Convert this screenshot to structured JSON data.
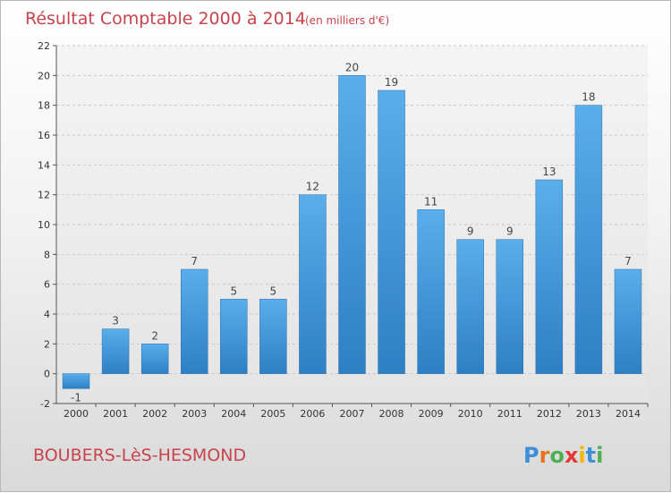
{
  "chart_data": {
    "type": "bar",
    "title": "Résultat Comptable 2000 à 2014",
    "subtitle": "(en milliers d'€)",
    "categories": [
      "2000",
      "2001",
      "2002",
      "2003",
      "2004",
      "2005",
      "2006",
      "2007",
      "2008",
      "2009",
      "2010",
      "2011",
      "2012",
      "2013",
      "2014"
    ],
    "values": [
      -1,
      3,
      2,
      7,
      5,
      5,
      12,
      20,
      19,
      11,
      9,
      9,
      13,
      18,
      7
    ],
    "ylim": [
      -2,
      22
    ],
    "yticks": [
      -2,
      0,
      2,
      4,
      6,
      8,
      10,
      12,
      14,
      16,
      18,
      20,
      22
    ],
    "grid": true,
    "bar_color": "#4a9ee0"
  },
  "footer": {
    "commune": "BOUBERS-LèS-HESMOND",
    "logo_letters": [
      "P",
      "r",
      "o",
      "x",
      "i",
      "t",
      "i"
    ],
    "logo_colors": [
      "#3d8fd6",
      "#e8721c",
      "#4caf50",
      "#e53935",
      "#f2b705",
      "#3d8fd6",
      "#4caf50"
    ]
  }
}
